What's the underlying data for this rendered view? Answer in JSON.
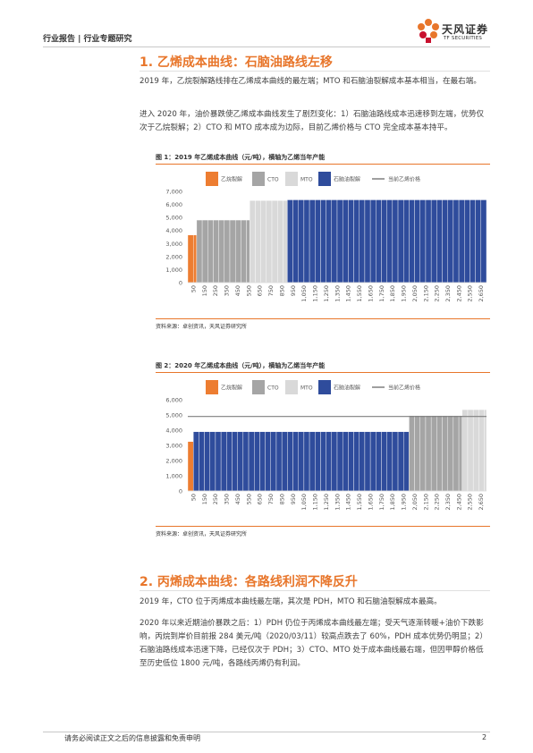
{
  "header": {
    "left_text": "行业报告 | 行业专题研究",
    "logo_cn": "天风证券",
    "logo_en": "TF SECURITIES"
  },
  "section1": {
    "title": "1. 乙烯成本曲线：石脑油路线左移",
    "para1": "2019 年，乙烷裂解路线排在乙烯成本曲线的最左端；MTO 和石脑油裂解成本基本相当，在最右端。",
    "para2": "进入 2020 年，油价暴跌使乙烯成本曲线发生了剧烈变化：1）石脑油路线成本迅速移到左端，优势仅次于乙烷裂解；2）CTO 和 MTO 成本成为边际，目前乙烯价格与 CTO 完全成本基本持平。"
  },
  "figure1": {
    "title": "图 1：2019 年乙烯成本曲线（元/吨），横轴为乙烯当年产能",
    "source": "资料来源：卓创资讯，天风证券研究所"
  },
  "figure2": {
    "title": "图 2：2020 年乙烯成本曲线（元/吨），横轴为乙烯当年产能",
    "source": "资料来源：卓创资讯，天风证券研究所"
  },
  "section2": {
    "title": "2. 丙烯成本曲线：各路线利润不降反升",
    "para1": "2019 年，CTO 位于丙烯成本曲线最左端，其次是 PDH，MTO 和石脑油裂解成本最高。",
    "para2": "2020 年以来近期油价暴跌之后：1）PDH 仍位于丙烯成本曲线最左端；受天气逐渐转暖+油价下跌影响，丙烷到岸价目前报 284 美元/吨（2020/03/11）较高点跌去了 60%，PDH 成本优势仍明显；2）石脑油路线成本迅速下降，已经仅次于 PDH；3）CTO、MTO 处于成本曲线最右端，但因甲醇价格低至历史低位 1800 元/吨，各路线丙烯仍有利润。"
  },
  "footer": {
    "disclaimer": "请务必阅读正文之后的信息披露和免责申明",
    "page": "2"
  },
  "colors": {
    "accent": "#e8762b",
    "ethane": "#ed7d31",
    "cto": "#a5a5a5",
    "mto": "#d9d9d9",
    "naphtha": "#2f4c9c",
    "price_line": "#7f7f7f"
  },
  "chart_data": [
    {
      "type": "bar",
      "title": "图 1：2019 年乙烯成本曲线（元/吨），横轴为乙烯当年产能",
      "xlabel": "",
      "ylabel": "",
      "ylim": [
        0,
        7000
      ],
      "yticks": [
        0,
        1000,
        2000,
        3000,
        4000,
        5000,
        6000,
        7000
      ],
      "ytick_labels": [
        "0",
        "1,000",
        "2,000",
        "3,000",
        "4,000",
        "5,000",
        "6,000",
        "7,000"
      ],
      "xlim": [
        0,
        2700
      ],
      "xticks": [
        50,
        150,
        250,
        350,
        450,
        550,
        650,
        750,
        850,
        950,
        1050,
        1150,
        1250,
        1350,
        1450,
        1550,
        1650,
        1750,
        1850,
        1950,
        2050,
        2150,
        2250,
        2350,
        2450,
        2550,
        2650
      ],
      "xtick_labels": [
        "50",
        "150",
        "250",
        "350",
        "450",
        "550",
        "650",
        "750",
        "850",
        "950",
        "1,050",
        "1,150",
        "1,250",
        "1,350",
        "1,450",
        "1,550",
        "1,650",
        "1,750",
        "1,850",
        "1,950",
        "2,050",
        "2,150",
        "2,250",
        "2,350",
        "2,450",
        "2,550",
        "2,650"
      ],
      "legend": [
        "乙烷裂解",
        "CTO",
        "MTO",
        "石脑油裂解",
        "当前乙烯价格"
      ],
      "legend_position": "top",
      "series": [
        {
          "name": "乙烷裂解",
          "color": "#ed7d31",
          "x_start": 0,
          "x_end": 80,
          "value": 3650
        },
        {
          "name": "CTO",
          "color": "#a5a5a5",
          "x_start": 80,
          "x_end": 560,
          "value": 4800
        },
        {
          "name": "MTO",
          "color": "#d9d9d9",
          "x_start": 560,
          "x_end": 900,
          "value": 6300
        },
        {
          "name": "石脑油裂解",
          "color": "#2f4c9c",
          "x_start": 900,
          "x_end": 2700,
          "value": 6350
        }
      ],
      "current_price": null
    },
    {
      "type": "bar",
      "title": "图 2：2020 年乙烯成本曲线（元/吨），横轴为乙烯当年产能",
      "xlabel": "",
      "ylabel": "",
      "ylim": [
        0,
        6000
      ],
      "yticks": [
        0,
        1000,
        2000,
        3000,
        4000,
        5000,
        6000
      ],
      "ytick_labels": [
        "0",
        "1,000",
        "2,000",
        "3,000",
        "4,000",
        "5,000",
        "6,000"
      ],
      "xlim": [
        0,
        2700
      ],
      "xticks": [
        50,
        150,
        250,
        350,
        450,
        550,
        650,
        750,
        850,
        950,
        1050,
        1150,
        1250,
        1350,
        1450,
        1550,
        1650,
        1750,
        1850,
        1950,
        2050,
        2150,
        2250,
        2350,
        2450,
        2550,
        2650
      ],
      "xtick_labels": [
        "50",
        "150",
        "250",
        "350",
        "450",
        "550",
        "650",
        "750",
        "850",
        "950",
        "1,050",
        "1,150",
        "1,250",
        "1,350",
        "1,450",
        "1,550",
        "1,650",
        "1,750",
        "1,850",
        "1,950",
        "2,050",
        "2,150",
        "2,250",
        "2,350",
        "2,450",
        "2,550",
        "2,650"
      ],
      "legend": [
        "乙烷裂解",
        "CTO",
        "MTO",
        "石脑油裂解",
        "当前乙烯价格"
      ],
      "legend_position": "top",
      "series": [
        {
          "name": "乙烷裂解",
          "color": "#ed7d31",
          "x_start": 0,
          "x_end": 50,
          "value": 3250
        },
        {
          "name": "石脑油裂解",
          "color": "#2f4c9c",
          "x_start": 50,
          "x_end": 2000,
          "value": 3900
        },
        {
          "name": "CTO",
          "color": "#a5a5a5",
          "x_start": 2000,
          "x_end": 2480,
          "value": 4950
        },
        {
          "name": "MTO",
          "color": "#d9d9d9",
          "x_start": 2480,
          "x_end": 2700,
          "value": 5350
        }
      ],
      "current_price": 4900
    }
  ]
}
